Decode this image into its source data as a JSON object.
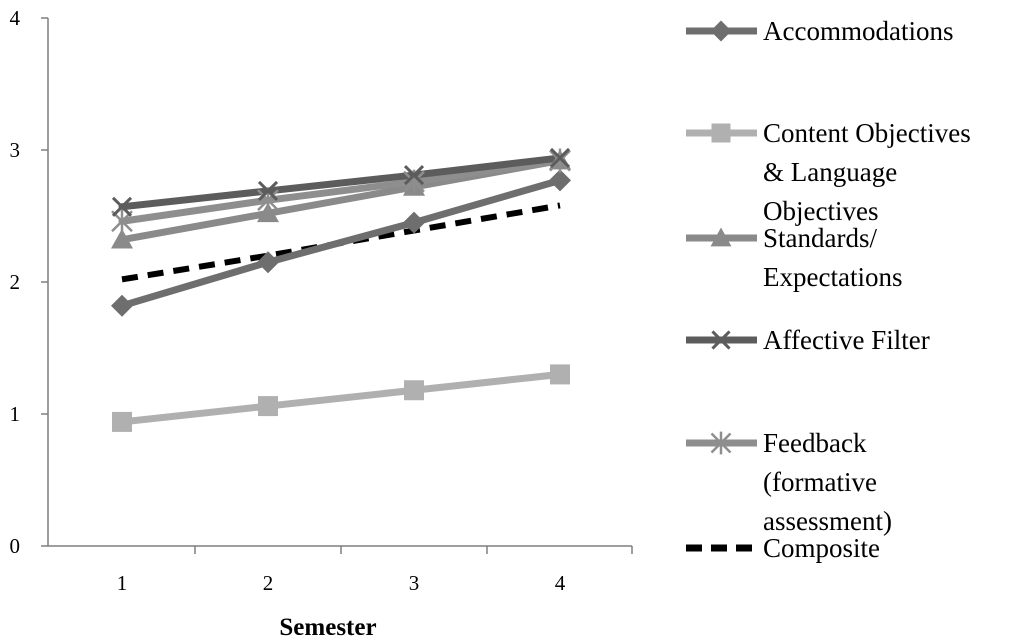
{
  "chart_data": {
    "type": "line",
    "title": "",
    "xlabel": "Semester",
    "ylabel": "",
    "x": [
      1,
      2,
      3,
      4
    ],
    "x_tick_labels": [
      "1",
      "2",
      "3",
      "4"
    ],
    "ylim": [
      0,
      4
    ],
    "y_ticks": [
      0,
      1,
      2,
      3,
      4
    ],
    "y_tick_labels": [
      "0",
      "1",
      "2",
      "3",
      "4"
    ],
    "grid": false,
    "legend_position": "right",
    "series": [
      {
        "name": "Accommodations",
        "legend_lines": [
          "Accommodations"
        ],
        "values": [
          1.82,
          2.15,
          2.45,
          2.77
        ],
        "color": "#6e6e6e",
        "marker": "diamond",
        "dashed": false
      },
      {
        "name": "Content Objectives & Language Objectives",
        "legend_lines": [
          "Content Objectives",
          "& Language",
          "Objectives"
        ],
        "values": [
          0.94,
          1.06,
          1.18,
          1.3
        ],
        "color": "#b0b0b0",
        "marker": "square",
        "dashed": false
      },
      {
        "name": "Standards/ Expectations",
        "legend_lines": [
          "Standards/",
          "Expectations"
        ],
        "values": [
          2.32,
          2.52,
          2.72,
          2.92
        ],
        "color": "#8a8a8a",
        "marker": "triangle",
        "dashed": false
      },
      {
        "name": "Affective Filter",
        "legend_lines": [
          "Affective Filter"
        ],
        "values": [
          2.57,
          2.69,
          2.81,
          2.94
        ],
        "color": "#5c5c5c",
        "marker": "x",
        "dashed": false
      },
      {
        "name": "Feedback (formative assessment)",
        "legend_lines": [
          "Feedback",
          "(formative",
          "assessment)"
        ],
        "values": [
          2.46,
          2.62,
          2.76,
          2.92
        ],
        "color": "#8e8e8e",
        "marker": "star",
        "dashed": false
      },
      {
        "name": "Composite",
        "legend_lines": [
          "Composite"
        ],
        "values": [
          2.02,
          2.2,
          2.39,
          2.58
        ],
        "color": "#000000",
        "marker": "none",
        "dashed": true
      }
    ]
  }
}
